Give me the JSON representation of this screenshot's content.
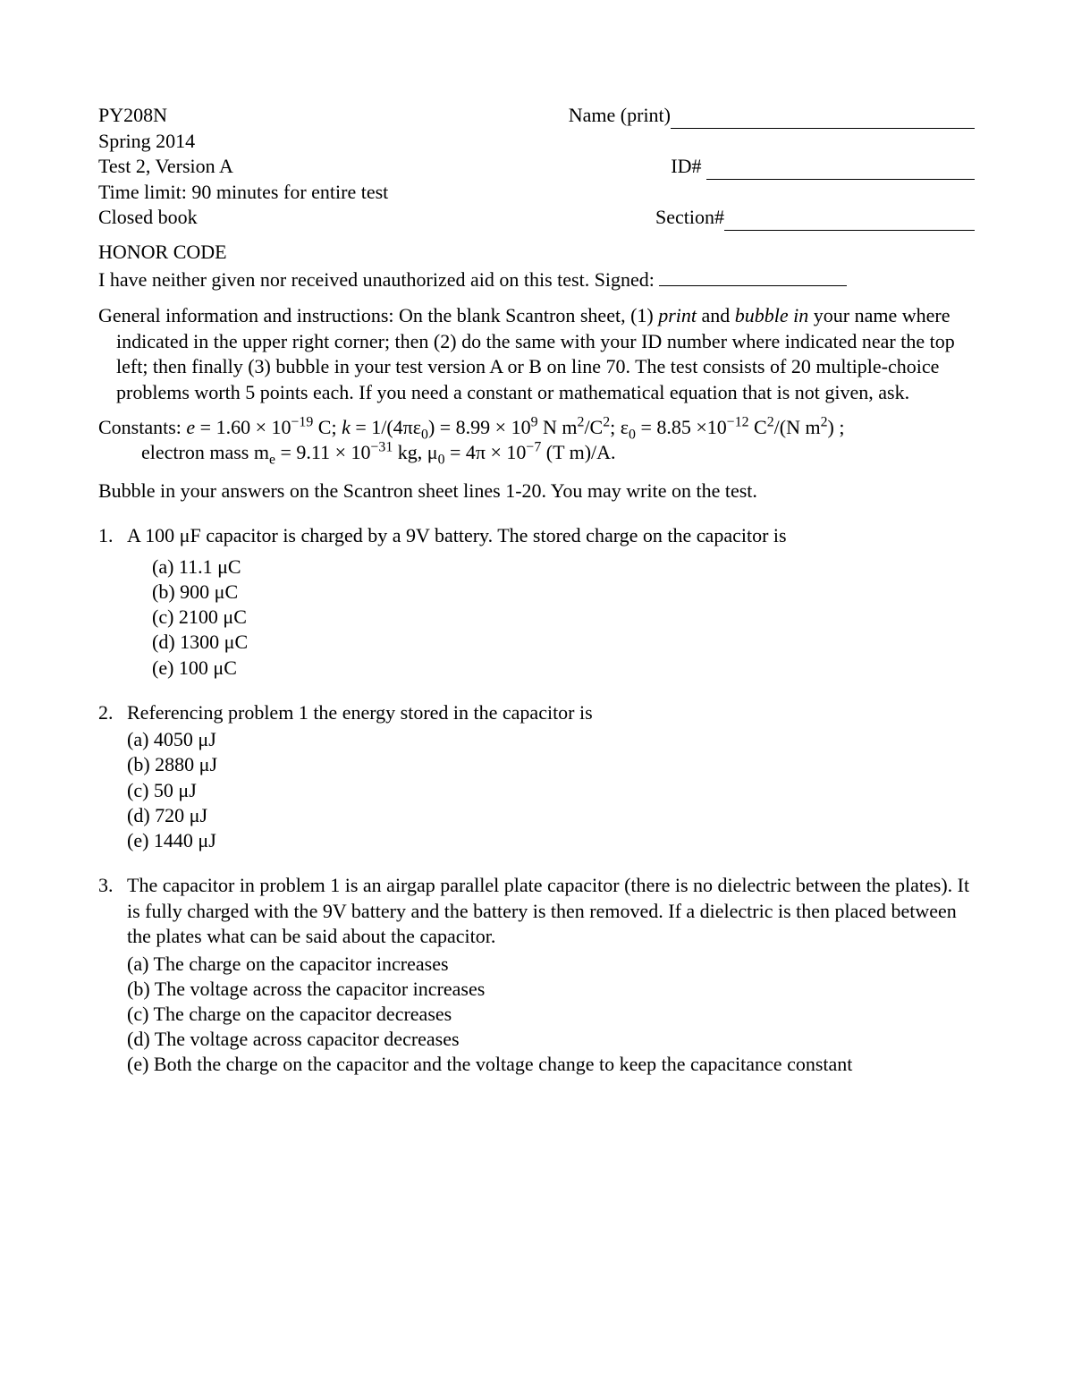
{
  "header": {
    "course": "PY208N",
    "term": "Spring 2014",
    "test": "Test 2, Version A",
    "time_limit": "Time limit:  90 minutes for entire test",
    "closed_book": "Closed book",
    "name_label": "Name (print)",
    "id_label": "ID#",
    "section_label": "Section#"
  },
  "honor": {
    "title": "HONOR CODE",
    "text": "I have neither given nor received unauthorized aid on this test. Signed:"
  },
  "instructions_prefix": "General information and instructions: On the blank Scantron sheet, (1) ",
  "instructions_print": "print",
  "instructions_and": " and ",
  "instructions_bubble": "bubble in",
  "instructions_rest": " your name where indicated in the upper right corner; then (2) do the same with your ID number where indicated near the top left; then finally (3) bubble in your test version A or B on line 70. The test consists of 20 multiple-choice problems worth 5 points each. If you need a constant or mathematical equation that is not given, ask.",
  "constants": {
    "label": "Constants:  ",
    "line1_a": "e",
    "line1_b": " = 1.60 × 10",
    "line1_c": "−19",
    "line1_d": " C;  ",
    "line1_e": "k",
    "line1_f": " = 1/(4πε",
    "line1_g": "0",
    "line1_h": ") = 8.99 × 10",
    "line1_i": "9",
    "line1_j": " N m",
    "line1_k": "2",
    "line1_l": "/C",
    "line1_m": "2",
    "line1_n": ";  ε",
    "line1_o": "0",
    "line1_p": " = 8.85 ×10",
    "line1_q": "−12",
    "line1_r": " C",
    "line1_s": "2",
    "line1_t": "/(N m",
    "line1_u": "2",
    "line1_v": ") ;",
    "line2_a": "electron mass m",
    "line2_b": "e",
    "line2_c": " = 9.11 × 10",
    "line2_d": "−31",
    "line2_e": " kg, μ",
    "line2_f": "0",
    "line2_g": " = 4π × 10",
    "line2_h": "−7",
    "line2_i": " (T m)/A."
  },
  "bubble_note": "Bubble in your answers on the Scantron sheet lines 1-20. You may write on the test.",
  "q1": {
    "num": "1.",
    "text": "A 100 μF capacitor is charged by a 9V battery. The stored charge on the capacitor is",
    "a": "(a) 11.1 μC",
    "b": "(b) 900 μC",
    "c": "(c) 2100 μC",
    "d": "(d) 1300 μC",
    "e": "(e) 100 μC"
  },
  "q2": {
    "num": "2.",
    "text": "Referencing problem 1 the energy stored in the capacitor is",
    "a": "(a) 4050 μJ",
    "b": "(b) 2880 μJ",
    "c": "(c) 50 μJ",
    "d": "(d) 720 μJ",
    "e": "(e) 1440 μJ"
  },
  "q3": {
    "num": "3.",
    "text": "The capacitor in problem 1 is an airgap parallel plate capacitor (there is no dielectric between the plates). It is fully charged with the 9V battery and the battery is then removed. If a dielectric is then placed between the plates what can be said about the capacitor.",
    "a": "(a) The charge on the capacitor increases",
    "b": "(b) The voltage across the capacitor increases",
    "c": "(c) The charge on the capacitor decreases",
    "d": "(d) The voltage across capacitor decreases",
    "e": "(e) Both the charge on the capacitor and the voltage change to keep the capacitance constant"
  }
}
